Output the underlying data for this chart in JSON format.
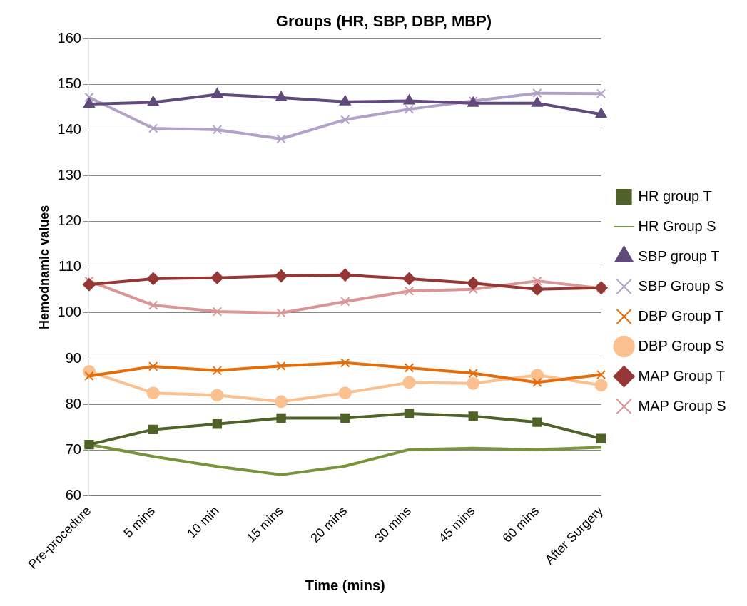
{
  "chart_data": {
    "type": "line",
    "title": "Groups (HR, SBP, DBP, MBP)",
    "xlabel": "Time (mins)",
    "ylabel": "Hemodnamic values",
    "categories": [
      "Pre-procedure",
      "5 mins",
      "10 min",
      "15 mins",
      "20 mins",
      "30 mins",
      "45 mins",
      "60 mins",
      "After Surgery"
    ],
    "series": [
      {
        "name": "HR group T",
        "color": "#4f6228",
        "marker": "square",
        "values": [
          71.2,
          74.5,
          75.7,
          77,
          77,
          78,
          77.4,
          76.1,
          72.5
        ]
      },
      {
        "name": "HR Group S",
        "color": "#77933c",
        "marker": "none",
        "values": [
          71.2,
          68.6,
          66.4,
          64.6,
          66.5,
          70.1,
          70.4,
          70.1,
          70.6
        ]
      },
      {
        "name": "SBP group T",
        "color": "#604a7b",
        "marker": "triangle",
        "values": [
          145.7,
          146.1,
          147.8,
          147.1,
          146.2,
          146.4,
          145.9,
          145.9,
          143.5
        ]
      },
      {
        "name": "SBP Group S",
        "color": "#b3a2c7",
        "marker": "cross",
        "values": [
          147.2,
          140.4,
          140.1,
          138.1,
          142.3,
          144.6,
          146.4,
          148.1,
          148
        ]
      },
      {
        "name": "DBP Group T",
        "color": "#e46c0a",
        "marker": "cross",
        "values": [
          86.2,
          88.3,
          87.4,
          88.4,
          89.1,
          88,
          86.8,
          84.8,
          86.5
        ]
      },
      {
        "name": "DBP Group S",
        "color": "#fac090",
        "marker": "circle",
        "values": [
          87.2,
          82.5,
          82,
          80.6,
          82.5,
          84.8,
          84.6,
          86.4,
          84.2
        ]
      },
      {
        "name": "MAP Group T",
        "color": "#953735",
        "marker": "diamond",
        "values": [
          106.2,
          107.5,
          107.7,
          108.1,
          108.3,
          107.5,
          106.5,
          105.2,
          105.5
        ]
      },
      {
        "name": "MAP Group S",
        "color": "#d99694",
        "marker": "cross",
        "values": [
          107,
          101.7,
          100.3,
          100,
          102.5,
          104.8,
          105.2,
          107,
          105.4
        ]
      }
    ],
    "ylim": [
      60,
      160
    ],
    "yticks": [
      60,
      70,
      80,
      90,
      100,
      110,
      120,
      130,
      140,
      150,
      160
    ],
    "grid": "y",
    "legend": "right",
    "line_style": "solid"
  }
}
